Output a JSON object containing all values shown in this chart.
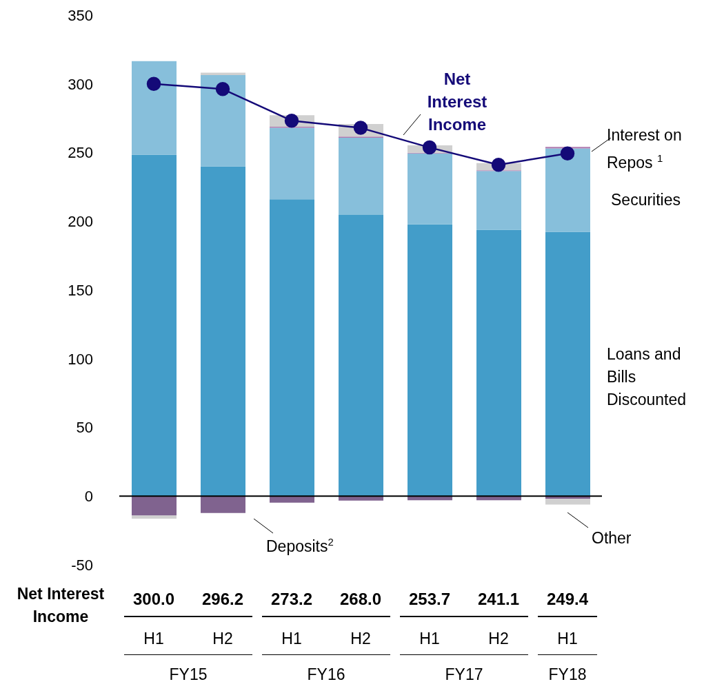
{
  "chart_data": {
    "type": "bar",
    "stacked": true,
    "categories": [
      "H1",
      "H2",
      "H1",
      "H2",
      "H1",
      "H2",
      "H1"
    ],
    "series": [
      {
        "name": "Loans and Bills Discounted",
        "color": "#439dc9",
        "values": [
          248.5,
          240.0,
          216.1,
          204.6,
          197.8,
          193.8,
          192.4
        ]
      },
      {
        "name": "Securities",
        "color": "#87bfdb",
        "values": [
          68.0,
          66.4,
          51.9,
          56.2,
          51.6,
          42.8,
          60.6
        ]
      },
      {
        "name": "Interest on Repos $^{1}$",
        "color": "#b07cb0",
        "values": [
          null,
          null,
          0.8,
          0.9,
          0.5,
          0.5,
          1.1
        ]
      },
      {
        "name": "Deposits$^{2}$",
        "color": "#80638f",
        "values": [
          -14.1,
          -12.3,
          -4.8,
          -3.2,
          -3.0,
          -3.0,
          -2.0
        ]
      },
      {
        "name": "Other",
        "color": "#d0d0d0",
        "values": [
          -2.3,
          1.8,
          8.4,
          9.1,
          5.4,
          5.3,
          -4.1
        ]
      },
      {
        "name": "Net Interest Income",
        "type": "line",
        "color": "#140a78",
        "values": [
          300.0,
          296.2,
          273.2,
          268.0,
          253.7,
          241.1,
          249.4
        ],
        "value_labels": [
          "300.0",
          "296.2",
          "273.2",
          "268.0",
          "253.7",
          "241.1",
          "249.4"
        ]
      }
    ],
    "annotations": [
      "FY15",
      "FY16",
      "FY17",
      "FY18"
    ],
    "ylim": [
      -50,
      350
    ],
    "yticks": [
      -50,
      0,
      50,
      100,
      150,
      200,
      250,
      300,
      350
    ],
    "ref_lines": [
      {
        "axis": "y",
        "value": 0,
        "color": "#000000"
      }
    ],
    "marker": "circle",
    "grid": false,
    "legend": false
  }
}
